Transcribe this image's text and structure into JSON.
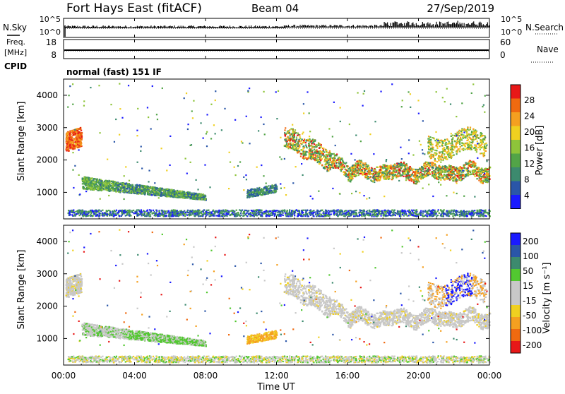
{
  "header": {
    "station": "Fort Hays East (fitACF)",
    "beam": "Beam 04",
    "date": "27/Sep/2019"
  },
  "left_labels": {
    "nsky": "N.Sky",
    "freq_line1": "Freq.",
    "freq_line2": "[MHz]",
    "cpid": "CPID"
  },
  "right_labels": {
    "nsearch": "N.Search",
    "nave": "Nave"
  },
  "cpid_text": "normal (fast) 151 IF",
  "colors": {
    "power_scale": [
      "#1a1aff",
      "#2a56a8",
      "#3c8a6e",
      "#52a447",
      "#8ec43a",
      "#f0d020",
      "#f5a020",
      "#f06a10",
      "#e81818"
    ],
    "velocity_scale": [
      "#e81818",
      "#f06a10",
      "#f5a020",
      "#f0d020",
      "#c8c8c8",
      "#c8c8c8",
      "#52c830",
      "#3c8a6e",
      "#2a56a8",
      "#1a1aff"
    ]
  },
  "chart_data": [
    {
      "type": "line",
      "panel": "nsky-nsearch",
      "y_ticks_left": [
        "10^5",
        "10^0"
      ],
      "y_ticks_right": [
        "10^5",
        "10^0"
      ]
    },
    {
      "type": "line",
      "panel": "freq-nave",
      "y_ticks_left": [
        "18",
        "8"
      ],
      "y_ticks_right": [
        "60",
        "0"
      ],
      "series": [
        {
          "name": "Freq.",
          "values": [
            10.5
          ]
        }
      ]
    },
    {
      "type": "heatmap",
      "panel": "power",
      "ylabel": "Slant Range [km]",
      "y_ticks": [
        "4000",
        "3000",
        "2000",
        "1000"
      ],
      "ylim": [
        180,
        4500
      ],
      "colorbar_label": "Power [dB]",
      "colorbar_ticks": [
        "28",
        "24",
        "20",
        "16",
        "12",
        "8",
        "4"
      ]
    },
    {
      "type": "heatmap",
      "panel": "velocity",
      "ylabel": "Slant Range [km]",
      "y_ticks": [
        "4000",
        "3000",
        "2000",
        "1000"
      ],
      "ylim": [
        180,
        4500
      ],
      "colorbar_label": "Velocity [m s⁻¹]",
      "colorbar_ticks": [
        "200",
        "100",
        "50",
        "15",
        "-15",
        "-50",
        "-100",
        "-200"
      ]
    }
  ],
  "x_axis": {
    "label": "Time UT",
    "ticks": [
      "00:00",
      "04:00",
      "08:00",
      "12:00",
      "16:00",
      "20:00",
      "00:00"
    ],
    "range_hours": [
      0,
      24
    ]
  }
}
